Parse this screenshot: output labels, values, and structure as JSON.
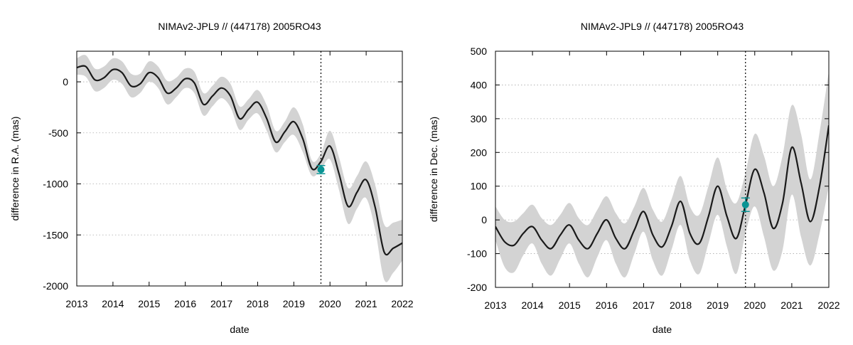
{
  "chart_data": [
    {
      "type": "line",
      "title": "NIMAv2-JPL9 // (447178) 2005RO43",
      "xlabel": "date",
      "ylabel": "difference in R.A. (mas)",
      "xlim": [
        2013,
        2022
      ],
      "ylim": [
        -2000,
        300
      ],
      "xticks": [
        "2013",
        "2014",
        "2015",
        "2016",
        "2017",
        "2018",
        "2019",
        "2020",
        "2021",
        "2022"
      ],
      "yticks": [
        "0",
        "-500",
        "-1000",
        "-1500",
        "-2000"
      ],
      "ytick_values": [
        0,
        -500,
        -1000,
        -1500,
        -2000
      ],
      "grid": true,
      "vline_x": 2019.75,
      "series": [
        {
          "name": "difference",
          "x": [
            2013.0,
            2013.25,
            2013.5,
            2013.75,
            2014.0,
            2014.25,
            2014.5,
            2014.75,
            2015.0,
            2015.25,
            2015.5,
            2015.75,
            2016.0,
            2016.25,
            2016.5,
            2016.75,
            2017.0,
            2017.25,
            2017.5,
            2017.75,
            2018.0,
            2018.25,
            2018.5,
            2018.75,
            2019.0,
            2019.25,
            2019.5,
            2019.75,
            2020.0,
            2020.25,
            2020.5,
            2020.75,
            2021.0,
            2021.25,
            2021.5,
            2021.75,
            2022.0
          ],
          "values": [
            140,
            150,
            20,
            40,
            120,
            90,
            -40,
            -20,
            90,
            40,
            -110,
            -60,
            30,
            -10,
            -220,
            -140,
            -60,
            -140,
            -360,
            -270,
            -200,
            -360,
            -590,
            -490,
            -390,
            -560,
            -850,
            -780,
            -630,
            -900,
            -1220,
            -1080,
            -960,
            -1230,
            -1670,
            -1630,
            -1580
          ],
          "lower": [
            70,
            50,
            -90,
            -60,
            20,
            -20,
            -150,
            -110,
            0,
            -60,
            -220,
            -150,
            -60,
            -110,
            -330,
            -240,
            -160,
            -250,
            -470,
            -370,
            -310,
            -480,
            -690,
            -590,
            -520,
            -690,
            -920,
            -860,
            -760,
            -1060,
            -1390,
            -1240,
            -1140,
            -1450,
            -1940,
            -1870,
            -1750
          ],
          "upper": [
            230,
            260,
            130,
            150,
            230,
            200,
            80,
            80,
            200,
            150,
            10,
            40,
            130,
            100,
            -110,
            -40,
            50,
            -20,
            -240,
            -170,
            -80,
            -230,
            -480,
            -390,
            -250,
            -420,
            -770,
            -700,
            -480,
            -740,
            -1040,
            -920,
            -780,
            -1010,
            -1400,
            -1380,
            -1350
          ]
        }
      ],
      "observation": {
        "x": 2019.75,
        "y": -860,
        "error": 40,
        "color": "#0a9494"
      }
    },
    {
      "type": "line",
      "title": "NIMAv2-JPL9 // (447178) 2005RO43",
      "xlabel": "date",
      "ylabel": "difference in Dec. (mas)",
      "xlim": [
        2013,
        2022
      ],
      "ylim": [
        -200,
        500
      ],
      "xticks": [
        "2013",
        "2014",
        "2015",
        "2016",
        "2017",
        "2018",
        "2019",
        "2020",
        "2021",
        "2022"
      ],
      "yticks": [
        "500",
        "400",
        "300",
        "200",
        "100",
        "0",
        "-100",
        "-200"
      ],
      "ytick_values": [
        500,
        400,
        300,
        200,
        100,
        0,
        -100,
        -200
      ],
      "grid": true,
      "vline_x": 2019.75,
      "series": [
        {
          "name": "difference",
          "x": [
            2013.0,
            2013.25,
            2013.5,
            2013.75,
            2014.0,
            2014.25,
            2014.5,
            2014.75,
            2015.0,
            2015.25,
            2015.5,
            2015.75,
            2016.0,
            2016.25,
            2016.5,
            2016.75,
            2017.0,
            2017.25,
            2017.5,
            2017.75,
            2018.0,
            2018.25,
            2018.5,
            2018.75,
            2019.0,
            2019.25,
            2019.5,
            2019.75,
            2020.0,
            2020.25,
            2020.5,
            2020.75,
            2021.0,
            2021.25,
            2021.5,
            2021.75,
            2022.0
          ],
          "values": [
            -20,
            -65,
            -75,
            -40,
            -20,
            -60,
            -85,
            -45,
            -15,
            -60,
            -85,
            -40,
            0,
            -55,
            -85,
            -30,
            25,
            -45,
            -80,
            -20,
            55,
            -40,
            -70,
            10,
            100,
            10,
            -55,
            45,
            150,
            80,
            -25,
            50,
            215,
            110,
            -5,
            100,
            280
          ],
          "lower": [
            -60,
            -140,
            -155,
            -105,
            -70,
            -130,
            -165,
            -115,
            -70,
            -130,
            -170,
            -110,
            -60,
            -130,
            -170,
            -100,
            -35,
            -120,
            -165,
            -90,
            -15,
            -120,
            -160,
            -70,
            15,
            -80,
            -160,
            -40,
            40,
            -50,
            -150,
            -90,
            75,
            -50,
            -135,
            -40,
            100
          ],
          "upper": [
            40,
            0,
            -5,
            20,
            45,
            5,
            -15,
            15,
            50,
            5,
            -15,
            30,
            70,
            20,
            -10,
            40,
            95,
            30,
            -5,
            60,
            130,
            40,
            15,
            100,
            185,
            90,
            50,
            140,
            255,
            190,
            100,
            190,
            340,
            255,
            120,
            260,
            440
          ]
        }
      ],
      "observation": {
        "x": 2019.75,
        "y": 45,
        "error": 20,
        "color": "#0a9494"
      }
    }
  ],
  "colors": {
    "line": "#1a1a1a",
    "band": "#d3d3d3",
    "observation": "#0a9494",
    "grid": "#aaaaaa"
  }
}
